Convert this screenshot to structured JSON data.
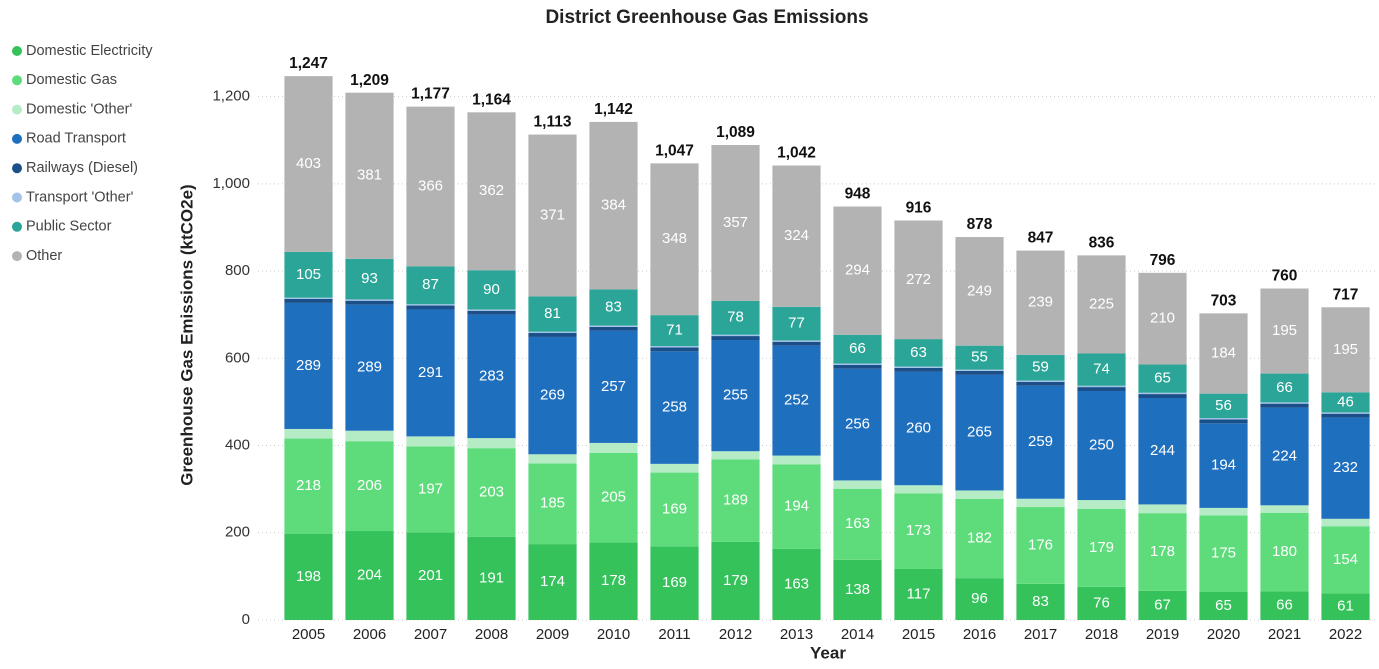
{
  "chart_data": {
    "type": "stacked_bar",
    "title": "District Greenhouse Gas Emissions",
    "x_label": "Year",
    "y_label": "Greenhouse Gas Emissions (ktCO2e)",
    "categories": [
      "2005",
      "2006",
      "2007",
      "2008",
      "2009",
      "2010",
      "2011",
      "2012",
      "2013",
      "2014",
      "2015",
      "2016",
      "2017",
      "2018",
      "2019",
      "2020",
      "2021",
      "2022"
    ],
    "series": [
      {
        "name": "Domestic Electricity",
        "color": "#35c25b",
        "values": [
          198,
          204,
          201,
          191,
          174,
          178,
          169,
          179,
          163,
          138,
          117,
          96,
          83,
          76,
          67,
          65,
          66,
          61
        ]
      },
      {
        "name": "Domestic Gas",
        "color": "#5edc7b",
        "values": [
          218,
          206,
          197,
          203,
          185,
          205,
          169,
          189,
          194,
          163,
          173,
          182,
          176,
          179,
          178,
          175,
          180,
          154
        ]
      },
      {
        "name": "Domestic 'Other'",
        "color": "#b6ecc5",
        "values": [
          22,
          24,
          23,
          23,
          21,
          23,
          20,
          19,
          20,
          19,
          19,
          19,
          19,
          20,
          20,
          17,
          17,
          17
        ]
      },
      {
        "name": "Road Transport",
        "color": "#1f6fbf",
        "values": [
          289,
          289,
          291,
          283,
          269,
          257,
          258,
          255,
          252,
          256,
          260,
          265,
          259,
          250,
          244,
          194,
          224,
          232
        ]
      },
      {
        "name": "Railways (Diesel)",
        "color": "#1b4f8a",
        "values": [
          9,
          9,
          9,
          9,
          9,
          9,
          9,
          9,
          9,
          9,
          9,
          9,
          9,
          9,
          9,
          9,
          9,
          9
        ]
      },
      {
        "name": "Transport 'Other'",
        "color": "#a3c4e8",
        "values": [
          3,
          3,
          3,
          3,
          3,
          3,
          3,
          3,
          3,
          3,
          3,
          3,
          3,
          3,
          3,
          3,
          3,
          3
        ]
      },
      {
        "name": "Public Sector",
        "color": "#2aa597",
        "values": [
          105,
          93,
          87,
          90,
          81,
          83,
          71,
          78,
          77,
          66,
          63,
          55,
          59,
          74,
          65,
          56,
          66,
          46
        ]
      },
      {
        "name": "Other",
        "color": "#b3b3b3",
        "values": [
          403,
          381,
          366,
          362,
          371,
          384,
          348,
          357,
          324,
          294,
          272,
          249,
          239,
          225,
          210,
          184,
          195,
          195
        ]
      }
    ],
    "totals": {
      "values": [
        1247,
        1209,
        1177,
        1164,
        1113,
        1142,
        1047,
        1089,
        1042,
        948,
        916,
        878,
        847,
        836,
        796,
        703,
        760,
        717
      ],
      "value_labels": [
        "1,247",
        "1,209",
        "1,177",
        "1,164",
        "1,113",
        "1,142",
        "1,047",
        "1,089",
        "1,042",
        "948",
        "916",
        "878",
        "847",
        "836",
        "796",
        "703",
        "760",
        "717"
      ]
    },
    "ylim": [
      0,
      1300
    ],
    "yticks": [
      0,
      200,
      400,
      600,
      800,
      {
        "value": 1000,
        "label": "1,000"
      },
      {
        "value": 1200,
        "label": "1,200"
      }
    ],
    "grid": true,
    "legend": "left"
  }
}
